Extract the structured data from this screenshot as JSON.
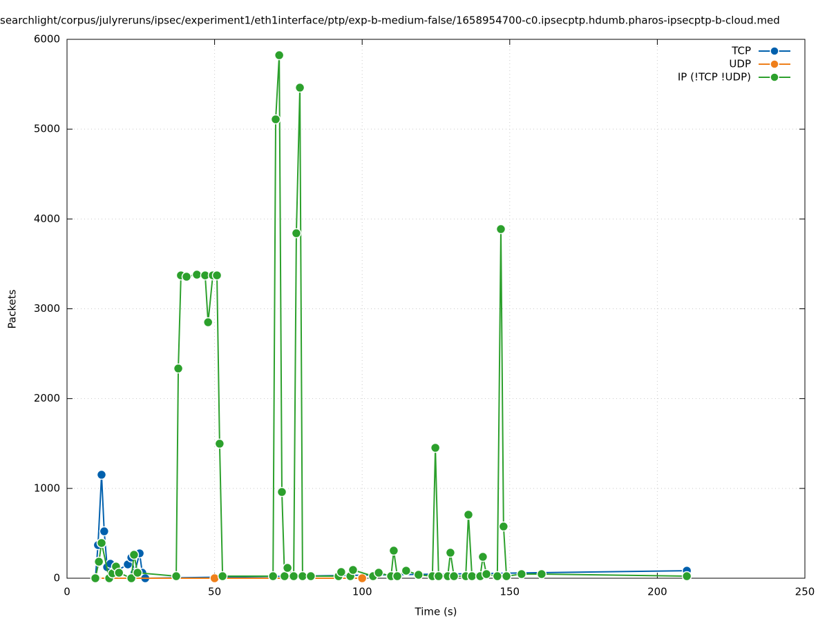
{
  "chart_data": {
    "type": "line",
    "title": "searchlight/corpus/julyreruns/ipsec/experiment1/eth1interface/ptp/exp-b-medium-false/1658954700-c0.ipsecptp.hdumb.pharos-ipsecptp-b-cloud.med",
    "x_label": "Time (s)",
    "y_label": "Packets",
    "xlim": [
      0,
      250
    ],
    "xticks": [
      0,
      50,
      100,
      150,
      200,
      250
    ],
    "ylim": [
      0,
      6000
    ],
    "yticks": [
      0,
      1000,
      2000,
      3000,
      4000,
      5000,
      6000
    ],
    "grid": true,
    "legend": "top-right",
    "series": [
      {
        "name": "TCP",
        "color": "#0060ad",
        "x": [
          9.6,
          10.5,
          11.7,
          12.6,
          13.6,
          14.7,
          15.7,
          20.6,
          21.8,
          22.9,
          24.6,
          25.5,
          26.5,
          210
        ],
        "values": [
          0,
          369,
          1152,
          522,
          123,
          161,
          61,
          154,
          230,
          61,
          277,
          61,
          0,
          84
        ]
      },
      {
        "name": "UDP",
        "color": "#ef7f1a",
        "x": [
          10,
          50,
          100
        ],
        "values": [
          0,
          0,
          0
        ]
      },
      {
        "name": "IP (!TCP  !UDP)",
        "color": "#2ca02c",
        "x": [
          9.6,
          10.8,
          11.7,
          14.3,
          15.4,
          16.6,
          17.6,
          21.8,
          22.7,
          23.9,
          37,
          37.7,
          38.6,
          40.5,
          44,
          46.8,
          47.8,
          49.4,
          50.8,
          51.7,
          52.7,
          69.8,
          70.7,
          71.9,
          72.8,
          73.7,
          74.7,
          76.8,
          77.7,
          78.9,
          79.8,
          82.6,
          92,
          92.9,
          96,
          96.9,
          103.7,
          105.6,
          109.8,
          110.7,
          111.9,
          114.9,
          119.1,
          123.8,
          124.8,
          125.9,
          129,
          129.9,
          131.1,
          135.1,
          136,
          137.2,
          140,
          140.9,
          142.1,
          145.8,
          147,
          147.9,
          148.9,
          154,
          160.8,
          210
        ],
        "values": [
          0,
          184,
          392,
          0,
          54,
          130,
          61,
          0,
          261,
          61,
          23,
          2335,
          3372,
          3357,
          3380,
          3372,
          2850,
          3372,
          3372,
          1498,
          23,
          23,
          5109,
          5823,
          960,
          23,
          115,
          23,
          3841,
          5462,
          23,
          23,
          23,
          69,
          23,
          92,
          23,
          61,
          23,
          307,
          23,
          84,
          38,
          23,
          1452,
          23,
          23,
          284,
          23,
          23,
          707,
          23,
          23,
          238,
          46,
          23,
          3887,
          576,
          23,
          46,
          46,
          23
        ]
      }
    ]
  }
}
